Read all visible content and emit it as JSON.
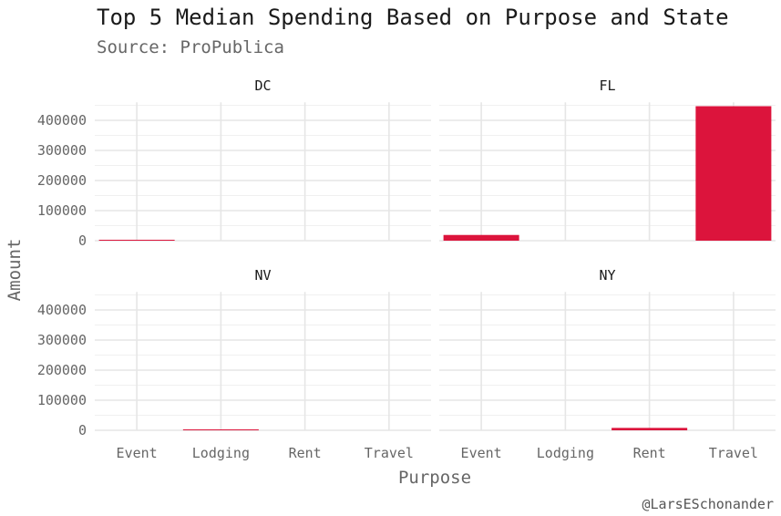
{
  "chart_data": {
    "type": "bar",
    "title": "Top 5 Median Spending Based on Purpose and State",
    "subtitle": "Source: ProPublica",
    "caption": "@LarsESchonander",
    "xlabel": "Purpose",
    "ylabel": "Amount",
    "categories": [
      "Event",
      "Lodging",
      "Rent",
      "Travel"
    ],
    "y_ticks": [
      0,
      100000,
      200000,
      300000,
      400000
    ],
    "ylim": [
      0,
      460000
    ],
    "grid": true,
    "bar_color": "#DC143C",
    "facets": [
      {
        "name": "DC",
        "values": [
          2500,
          0,
          0,
          0
        ]
      },
      {
        "name": "FL",
        "values": [
          19000,
          0,
          0,
          447000
        ]
      },
      {
        "name": "NV",
        "values": [
          0,
          2500,
          0,
          0
        ]
      },
      {
        "name": "NY",
        "values": [
          0,
          0,
          8000,
          0
        ]
      }
    ]
  }
}
